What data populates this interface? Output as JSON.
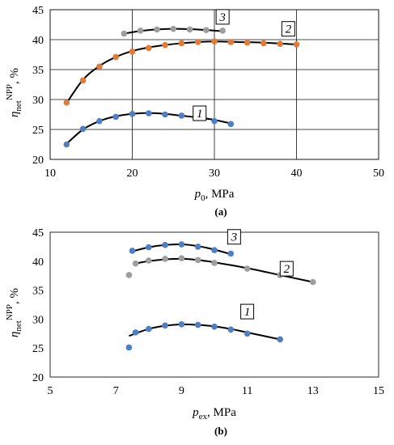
{
  "chart_data": [
    {
      "type": "scatter",
      "panel": "(a)",
      "xlabel_var": "p",
      "xlabel_sub": "0",
      "xlabel_unit": ", MPa",
      "ylabel_main": "η",
      "ylabel_sub": "net",
      "ylabel_sup": "NPP",
      "ylabel_unit": ", %",
      "xlim": [
        10,
        50
      ],
      "ylim": [
        20,
        45
      ],
      "xticks": [
        10,
        20,
        30,
        40,
        50
      ],
      "yticks": [
        20,
        25,
        30,
        35,
        40,
        45
      ],
      "grid": true,
      "series": [
        {
          "name": "1",
          "color": "#4f7fc2",
          "x": [
            12,
            14,
            16,
            18,
            20,
            22,
            24,
            26,
            28,
            30,
            32
          ],
          "y": [
            22.5,
            25.1,
            26.4,
            27.1,
            27.6,
            27.7,
            27.5,
            27.3,
            26.9,
            26.4,
            25.9
          ],
          "fit": [
            [
              12,
              22.6
            ],
            [
              14,
              25.0
            ],
            [
              16,
              26.4
            ],
            [
              18,
              27.2
            ],
            [
              20,
              27.6
            ],
            [
              22,
              27.75
            ],
            [
              24,
              27.6
            ],
            [
              26,
              27.3
            ],
            [
              28,
              27.0
            ],
            [
              30,
              26.6
            ],
            [
              32,
              26.0
            ]
          ]
        },
        {
          "name": "2",
          "color": "#e07b39",
          "x": [
            12,
            14,
            16,
            18,
            20,
            22,
            24,
            26,
            28,
            30,
            32,
            34,
            36,
            38,
            40
          ],
          "y": [
            29.5,
            33.2,
            35.5,
            37.1,
            38.0,
            38.6,
            39.1,
            39.4,
            39.6,
            39.7,
            39.6,
            39.5,
            39.4,
            39.3,
            39.2
          ],
          "fit": [
            [
              12,
              29.4
            ],
            [
              14,
              33.3
            ],
            [
              16,
              35.6
            ],
            [
              18,
              37.1
            ],
            [
              20,
              38.1
            ],
            [
              22,
              38.7
            ],
            [
              24,
              39.1
            ],
            [
              26,
              39.4
            ],
            [
              28,
              39.6
            ],
            [
              30,
              39.7
            ],
            [
              33,
              39.6
            ],
            [
              36,
              39.5
            ],
            [
              40,
              39.2
            ]
          ]
        },
        {
          "name": "3",
          "color": "#9e9e9e",
          "x": [
            19,
            21,
            23,
            25,
            27,
            29,
            31
          ],
          "y": [
            41.0,
            41.5,
            41.7,
            41.8,
            41.7,
            41.6,
            41.5
          ],
          "fit": [
            [
              19,
              41.0
            ],
            [
              21,
              41.45
            ],
            [
              23,
              41.7
            ],
            [
              25,
              41.8
            ],
            [
              27,
              41.75
            ],
            [
              29,
              41.6
            ],
            [
              31,
              41.4
            ]
          ]
        }
      ]
    },
    {
      "type": "scatter",
      "panel": "(b)",
      "xlabel_var": "p",
      "xlabel_sub": "ex",
      "xlabel_unit": ", MPa",
      "ylabel_main": "η",
      "ylabel_sub": "net",
      "ylabel_sup": "NPP",
      "ylabel_unit": ", %",
      "xlim": [
        5,
        15
      ],
      "ylim": [
        20,
        45
      ],
      "xticks": [
        5,
        7,
        9,
        11,
        13,
        15
      ],
      "yticks": [
        20,
        25,
        30,
        35,
        40,
        45
      ],
      "grid": false,
      "series": [
        {
          "name": "1",
          "color": "#4f7fc2",
          "x": [
            7.4,
            7.6,
            8.0,
            8.5,
            9.0,
            9.5,
            10.0,
            10.5,
            11.0,
            12.0
          ],
          "y": [
            25.1,
            27.7,
            28.3,
            28.9,
            29.1,
            29.0,
            28.7,
            28.2,
            27.5,
            26.5
          ],
          "fit": [
            [
              7.4,
              27.1
            ],
            [
              8.0,
              28.3
            ],
            [
              8.5,
              28.85
            ],
            [
              9.0,
              29.1
            ],
            [
              9.5,
              29.0
            ],
            [
              10.0,
              28.75
            ],
            [
              10.5,
              28.3
            ],
            [
              11.0,
              27.7
            ],
            [
              12.0,
              26.5
            ]
          ]
        },
        {
          "name": "2",
          "color": "#9e9e9e",
          "x": [
            7.4,
            7.6,
            8.0,
            8.5,
            9.0,
            9.5,
            10.0,
            11.0,
            12.0,
            13.0
          ],
          "y": [
            37.6,
            39.6,
            40.1,
            40.4,
            40.5,
            40.2,
            39.7,
            38.7,
            37.6,
            36.4
          ],
          "fit": [
            [
              7.6,
              39.6
            ],
            [
              8.0,
              40.0
            ],
            [
              8.5,
              40.3
            ],
            [
              9.0,
              40.4
            ],
            [
              9.5,
              40.2
            ],
            [
              10.0,
              39.8
            ],
            [
              11.0,
              38.8
            ],
            [
              12.0,
              37.6
            ],
            [
              13.0,
              36.4
            ]
          ]
        },
        {
          "name": "3",
          "color": "#4f7fc2",
          "x": [
            7.5,
            8.0,
            8.5,
            9.0,
            9.5,
            10.0,
            10.5
          ],
          "y": [
            41.8,
            42.4,
            42.8,
            42.9,
            42.5,
            41.9,
            41.3
          ],
          "fit": [
            [
              7.5,
              41.7
            ],
            [
              8.0,
              42.4
            ],
            [
              8.5,
              42.8
            ],
            [
              9.0,
              42.9
            ],
            [
              9.5,
              42.6
            ],
            [
              10.0,
              42.0
            ],
            [
              10.5,
              41.2
            ]
          ]
        }
      ]
    }
  ]
}
